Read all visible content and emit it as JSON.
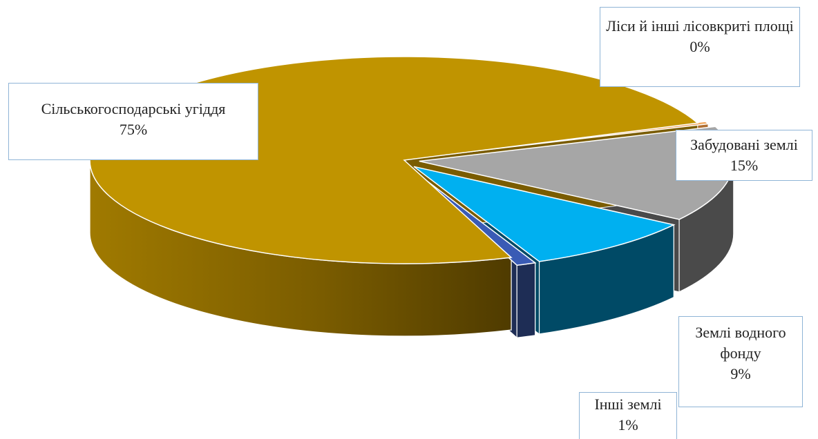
{
  "chart_data": {
    "type": "pie",
    "style": "3d-exploded",
    "categories": [
      "Сільськогосподарські угіддя",
      "Ліси й інші лісовкриті площі",
      "Забудовані землі",
      "Землі водного фонду",
      "Інші землі"
    ],
    "values": [
      75,
      0.4,
      15,
      9,
      1
    ],
    "labels": [
      "75%",
      "0%",
      "15%",
      "9%",
      "1%"
    ],
    "colors": {
      "top": [
        "#C09400",
        "#F0A860",
        "#A6A6A6",
        "#00B0F0",
        "#3A5BB5"
      ],
      "side": [
        "#7A5C00",
        "#B06E30",
        "#4A4A4A",
        "#004A66",
        "#1E2D55"
      ]
    },
    "title": "",
    "legend": "none",
    "data_labels": "callouts"
  }
}
